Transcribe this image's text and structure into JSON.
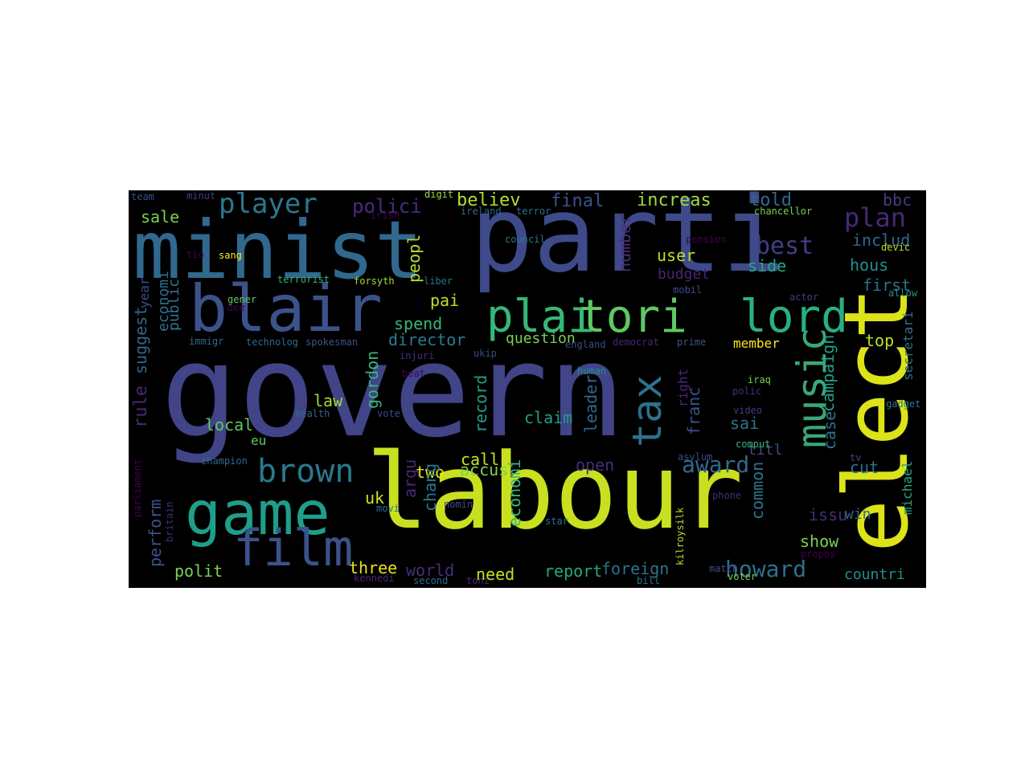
{
  "palette": {
    "background": "#000000",
    "yellow": "#d2e21b",
    "green": "#35b779",
    "teal": "#21918c",
    "blue": "#31688e",
    "indigo": "#3e4a89",
    "purple": "#440154"
  },
  "words": [
    {
      "text": "govern",
      "c": "#414487"
    },
    {
      "text": "labour",
      "c": "#c8e020"
    },
    {
      "text": "parti",
      "c": "#3e4a89"
    },
    {
      "text": "minist",
      "c": "#31688e"
    },
    {
      "text": "elect",
      "c": "#dce319"
    },
    {
      "text": "blair",
      "c": "#3b528b"
    },
    {
      "text": "game",
      "c": "#1f9e89"
    },
    {
      "text": "film",
      "c": "#3b528b"
    },
    {
      "text": "plai",
      "c": "#35b779"
    },
    {
      "text": "tori",
      "c": "#5ec962"
    },
    {
      "text": "lord",
      "c": "#29af7f"
    },
    {
      "text": "music",
      "c": "#3ba776"
    },
    {
      "text": "tax",
      "c": "#2c728e"
    },
    {
      "text": "brown",
      "c": "#2a788e"
    },
    {
      "text": "player",
      "c": "#2a788e"
    },
    {
      "text": "plan",
      "c": "#482878"
    },
    {
      "text": "best",
      "c": "#433e85"
    },
    {
      "text": "award",
      "c": "#31688e"
    },
    {
      "text": "howard",
      "c": "#2d708e"
    },
    {
      "text": "polici",
      "c": "#472d7b"
    },
    {
      "text": "believ",
      "c": "#b5de2b"
    },
    {
      "text": "final",
      "c": "#3b528b"
    },
    {
      "text": "increas",
      "c": "#a0da39"
    },
    {
      "text": "told",
      "c": "#31688e"
    },
    {
      "text": "bbc",
      "c": "#443a83"
    },
    {
      "text": "includ",
      "c": "#31688e"
    },
    {
      "text": "user",
      "c": "#bddf26"
    },
    {
      "text": "side",
      "c": "#22a884"
    },
    {
      "text": "hous",
      "c": "#21918c"
    },
    {
      "text": "first",
      "c": "#2c728e"
    },
    {
      "text": "budget",
      "c": "#482475"
    },
    {
      "text": "sale",
      "c": "#7ad151"
    },
    {
      "text": "peopl",
      "c": "#b5de2b"
    },
    {
      "text": "number",
      "c": "#472d7b"
    },
    {
      "text": "pai",
      "c": "#c2df23"
    },
    {
      "text": "spend",
      "c": "#35b779"
    },
    {
      "text": "director",
      "c": "#287c8e"
    },
    {
      "text": "question",
      "c": "#7ad151"
    },
    {
      "text": "member",
      "c": "#fde725"
    },
    {
      "text": "top",
      "c": "#bddf26"
    },
    {
      "text": "campaign",
      "c": "#1f9e89"
    },
    {
      "text": "secretari",
      "c": "#2d708e"
    },
    {
      "text": "year",
      "c": "#3e4a89"
    },
    {
      "text": "suggest",
      "c": "#31688e"
    },
    {
      "text": "public",
      "c": "#2a788e"
    },
    {
      "text": "economi",
      "c": "#2c728e"
    },
    {
      "text": "rule",
      "c": "#482878"
    },
    {
      "text": "law",
      "c": "#a0da39"
    },
    {
      "text": "local",
      "c": "#5ec962"
    },
    {
      "text": "gordon",
      "c": "#35b779"
    },
    {
      "text": "record",
      "c": "#1f9e89"
    },
    {
      "text": "claim",
      "c": "#1f9e89"
    },
    {
      "text": "leader",
      "c": "#31688e"
    },
    {
      "text": "franc",
      "c": "#3b528b"
    },
    {
      "text": "right",
      "c": "#482878"
    },
    {
      "text": "sai",
      "c": "#2c728e"
    },
    {
      "text": "case",
      "c": "#2c728e"
    },
    {
      "text": "titl",
      "c": "#3e4a89"
    },
    {
      "text": "cut",
      "c": "#2c728e"
    },
    {
      "text": "eu",
      "c": "#5ec962"
    },
    {
      "text": "call",
      "c": "#c8e020"
    },
    {
      "text": "accus",
      "c": "#7ad151"
    },
    {
      "text": "two",
      "c": "#e5e419"
    },
    {
      "text": "open",
      "c": "#472d7b"
    },
    {
      "text": "uk",
      "c": "#cde11d"
    },
    {
      "text": "argu",
      "c": "#482878"
    },
    {
      "text": "chang",
      "c": "#2a788e"
    },
    {
      "text": "economi",
      "c": "#35b779"
    },
    {
      "text": "common",
      "c": "#2c728e"
    },
    {
      "text": "michael",
      "c": "#22a884"
    },
    {
      "text": "issu",
      "c": "#472d7b"
    },
    {
      "text": "win",
      "c": "#31688e"
    },
    {
      "text": "show",
      "c": "#7ad151"
    },
    {
      "text": "perform",
      "c": "#3b528b"
    },
    {
      "text": "polit",
      "c": "#7ad151"
    },
    {
      "text": "three",
      "c": "#e5e419"
    },
    {
      "text": "world",
      "c": "#472d7b"
    },
    {
      "text": "need",
      "c": "#c8e020"
    },
    {
      "text": "report",
      "c": "#22a884"
    },
    {
      "text": "foreign",
      "c": "#2c728e"
    },
    {
      "text": "countri",
      "c": "#21918c"
    },
    {
      "text": "team",
      "c": "#3b528b"
    },
    {
      "text": "minut",
      "c": "#433e85"
    },
    {
      "text": "digit",
      "c": "#a0da39"
    },
    {
      "text": "irish",
      "c": "#440154"
    },
    {
      "text": "ireland",
      "c": "#31688e"
    },
    {
      "text": "terror",
      "c": "#2c728e"
    },
    {
      "text": "chancellor",
      "c": "#7ad151"
    },
    {
      "text": "council",
      "c": "#2a788e"
    },
    {
      "text": "pension",
      "c": "#440154"
    },
    {
      "text": "devic",
      "c": "#c2df23"
    },
    {
      "text": "tio",
      "c": "#440154"
    },
    {
      "text": "sang",
      "c": "#fde725"
    },
    {
      "text": "terrorist",
      "c": "#35b779"
    },
    {
      "text": "forsyth",
      "c": "#a0da39"
    },
    {
      "text": "liber",
      "c": "#2c728e"
    },
    {
      "text": "mobil",
      "c": "#3e4a89"
    },
    {
      "text": "actor",
      "c": "#443a83"
    },
    {
      "text": "allow",
      "c": "#21918c"
    },
    {
      "text": "gener",
      "c": "#5ec962"
    },
    {
      "text": "dee",
      "c": "#440154"
    },
    {
      "text": "immigr",
      "c": "#31688e"
    },
    {
      "text": "technolog",
      "c": "#31688e"
    },
    {
      "text": "spokesman",
      "c": "#3b528b"
    },
    {
      "text": "democrat",
      "c": "#482878"
    },
    {
      "text": "prime",
      "c": "#3b528b"
    },
    {
      "text": "injuri",
      "c": "#472d7b"
    },
    {
      "text": "ukip",
      "c": "#3e4a89"
    },
    {
      "text": "england",
      "c": "#3e4a89"
    },
    {
      "text": "beat",
      "c": "#440154"
    },
    {
      "text": "human",
      "c": "#21918c"
    },
    {
      "text": "iraq",
      "c": "#7ad151"
    },
    {
      "text": "polic",
      "c": "#472d7b"
    },
    {
      "text": "video",
      "c": "#443a83"
    },
    {
      "text": "gadget",
      "c": "#2a788e"
    },
    {
      "text": "health",
      "c": "#31688e"
    },
    {
      "text": "vote",
      "c": "#3e4a89"
    },
    {
      "text": "comput",
      "c": "#35b779"
    },
    {
      "text": "asylum",
      "c": "#3e4a89"
    },
    {
      "text": "champion",
      "c": "#31688e"
    },
    {
      "text": "parliament",
      "c": "#440154"
    },
    {
      "text": "britain",
      "c": "#482878"
    },
    {
      "text": "movi",
      "c": "#2c728e"
    },
    {
      "text": "nomin",
      "c": "#3e4a89"
    },
    {
      "text": "star",
      "c": "#2c728e"
    },
    {
      "text": "phone",
      "c": "#472d7b"
    },
    {
      "text": "kilroysilk",
      "c": "#b5de2b"
    },
    {
      "text": "propos",
      "c": "#440154"
    },
    {
      "text": "match",
      "c": "#3e4a89"
    },
    {
      "text": "voter",
      "c": "#7ad151"
    },
    {
      "text": "kennedi",
      "c": "#482878"
    },
    {
      "text": "second",
      "c": "#31688e"
    },
    {
      "text": "toni",
      "c": "#482878"
    },
    {
      "text": "bill",
      "c": "#2c728e"
    },
    {
      "text": "tv",
      "c": "#3e4a89"
    }
  ]
}
